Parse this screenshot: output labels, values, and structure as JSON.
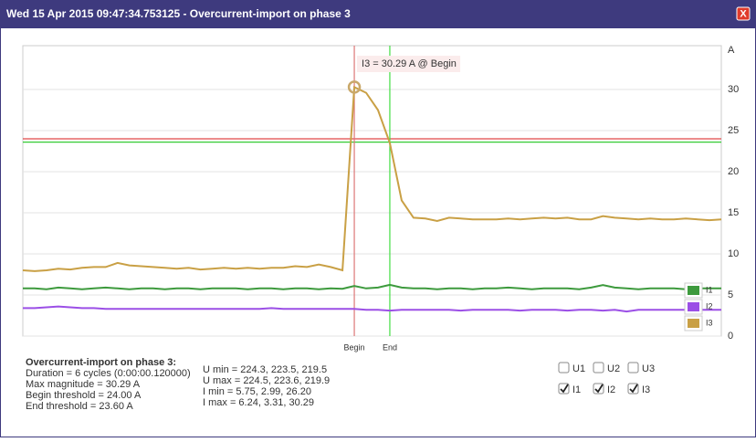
{
  "header": {
    "title": "Wed 15 Apr 2015 09:47:34.753125 - Overcurrent-import on phase 3",
    "close": "X"
  },
  "chart_data": {
    "type": "line",
    "y_label": "A",
    "ylim": [
      0,
      35
    ],
    "yticks": [
      0,
      5,
      10,
      15,
      20,
      25,
      30
    ],
    "grid": true,
    "series": [
      {
        "name": "I1",
        "color": "#3d9a3d",
        "values": [
          5.8,
          5.8,
          5.7,
          5.9,
          5.8,
          5.7,
          5.8,
          5.9,
          5.8,
          5.7,
          5.8,
          5.8,
          5.7,
          5.8,
          5.8,
          5.7,
          5.8,
          5.8,
          5.8,
          5.7,
          5.8,
          5.8,
          5.7,
          5.8,
          5.8,
          5.7,
          5.8,
          5.75,
          6.1,
          5.8,
          5.9,
          6.24,
          5.9,
          5.8,
          5.8,
          5.7,
          5.8,
          5.8,
          5.7,
          5.8,
          5.8,
          5.9,
          5.8,
          5.7,
          5.8,
          5.8,
          5.8,
          5.7,
          5.9,
          6.2,
          5.9,
          5.8,
          5.7,
          5.8,
          5.8,
          5.8,
          5.7,
          5.8,
          5.8,
          5.8
        ]
      },
      {
        "name": "I2",
        "color": "#9b4fe6",
        "values": [
          3.4,
          3.4,
          3.5,
          3.6,
          3.5,
          3.4,
          3.4,
          3.3,
          3.3,
          3.3,
          3.3,
          3.3,
          3.3,
          3.3,
          3.3,
          3.3,
          3.3,
          3.3,
          3.3,
          3.3,
          3.3,
          3.4,
          3.3,
          3.3,
          3.3,
          3.3,
          3.31,
          3.3,
          3.3,
          3.2,
          3.2,
          3.1,
          3.2,
          3.2,
          3.2,
          3.2,
          3.2,
          3.1,
          3.2,
          3.2,
          3.2,
          3.2,
          3.1,
          3.2,
          3.2,
          3.2,
          3.1,
          3.2,
          3.2,
          3.1,
          3.2,
          2.99,
          3.2,
          3.2,
          3.2,
          3.2,
          3.2,
          3.2,
          3.2,
          3.2
        ]
      },
      {
        "name": "I3",
        "color": "#c9a045",
        "values": [
          8.0,
          7.9,
          8.0,
          8.2,
          8.1,
          8.3,
          8.4,
          8.4,
          8.9,
          8.6,
          8.5,
          8.4,
          8.3,
          8.2,
          8.3,
          8.1,
          8.2,
          8.3,
          8.2,
          8.3,
          8.2,
          8.3,
          8.3,
          8.5,
          8.4,
          8.7,
          8.4,
          8.0,
          30.29,
          29.6,
          27.5,
          23.5,
          16.5,
          14.4,
          14.3,
          14.0,
          14.4,
          14.3,
          14.2,
          14.2,
          14.2,
          14.3,
          14.2,
          14.3,
          14.4,
          14.3,
          14.4,
          14.2,
          14.2,
          14.6,
          14.4,
          14.3,
          14.2,
          14.3,
          14.2,
          14.2,
          14.3,
          14.2,
          14.1,
          14.2
        ]
      }
    ],
    "thresholds": [
      {
        "value": 24,
        "color": "#e04848"
      },
      {
        "value": 23.6,
        "color": "#33cc33"
      }
    ],
    "markers": [
      {
        "label": "Begin",
        "index": 28,
        "color": "#d77"
      },
      {
        "label": "End",
        "index": 31,
        "color": "#4d4"
      }
    ],
    "annotation": {
      "text": "I3 = 30.29 A @ Begin",
      "series": 2,
      "index": 28
    }
  },
  "details": {
    "heading": "Overcurrent-import on phase 3:",
    "lines": [
      "Duration = 6 cycles (0:00:00.120000)",
      "Max magnitude = 30.29 A",
      "Begin threshold = 24.00 A",
      "End threshold = 23.60 A"
    ],
    "stats": [
      "U min = 224.3, 223.5, 219.5",
      "U max = 224.5, 223.6, 219.9",
      "I min = 5.75, 2.99, 26.20",
      "I max = 6.24, 3.31, 30.29"
    ]
  },
  "checkboxes": [
    {
      "label": "U1",
      "checked": false
    },
    {
      "label": "U2",
      "checked": false
    },
    {
      "label": "U3",
      "checked": false
    },
    {
      "label": "I1",
      "checked": true
    },
    {
      "label": "I2",
      "checked": true
    },
    {
      "label": "I3",
      "checked": true
    }
  ]
}
